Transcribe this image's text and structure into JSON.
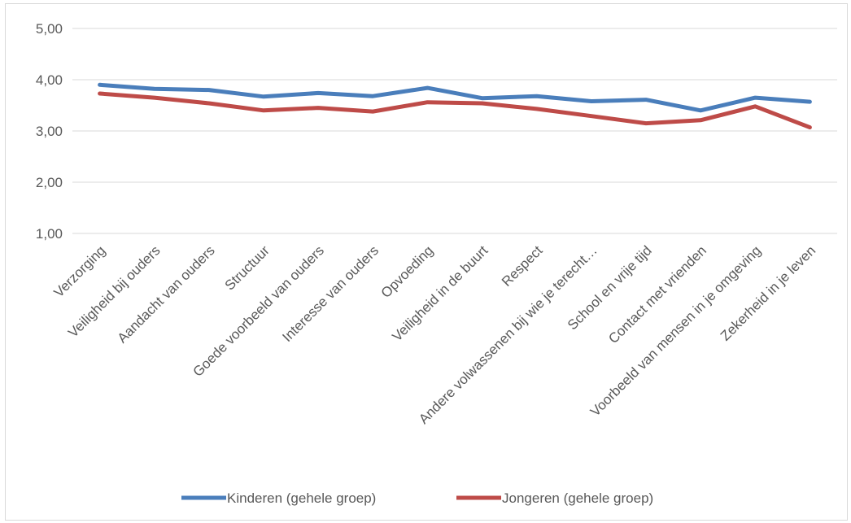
{
  "chart_data": {
    "type": "line",
    "title": "",
    "xlabel": "",
    "ylabel": "",
    "ylim": [
      1,
      5
    ],
    "yticks": [
      "1,00",
      "2,00",
      "3,00",
      "4,00",
      "5,00"
    ],
    "ytick_values": [
      1,
      2,
      3,
      4,
      5
    ],
    "grid": true,
    "legend_position": "bottom",
    "categories": [
      "Verzorging",
      "Veiligheid bij ouders",
      "Aandacht van ouders",
      "Structuur",
      "Goede voorbeeld van ouders",
      "Interesse van ouders",
      "Opvoeding",
      "Veiligheid in de buurt",
      "Respect",
      "Andere volwassenen bij wie je terecht…",
      "School en vrije tijd",
      "Contact met vrienden",
      "Voorbeeld van mensen in je omgeving",
      "Zekerheid in je leven"
    ],
    "series": [
      {
        "name": "Kinderen (gehele groep)",
        "color": "#4a7ebb",
        "values": [
          3.9,
          3.82,
          3.8,
          3.67,
          3.74,
          3.68,
          3.84,
          3.64,
          3.68,
          3.58,
          3.61,
          3.4,
          3.65,
          3.57
        ]
      },
      {
        "name": "Jongeren (gehele groep)",
        "color": "#be4b48",
        "values": [
          3.73,
          3.65,
          3.54,
          3.4,
          3.45,
          3.38,
          3.56,
          3.54,
          3.43,
          3.29,
          3.15,
          3.21,
          3.48,
          3.07
        ]
      }
    ]
  }
}
